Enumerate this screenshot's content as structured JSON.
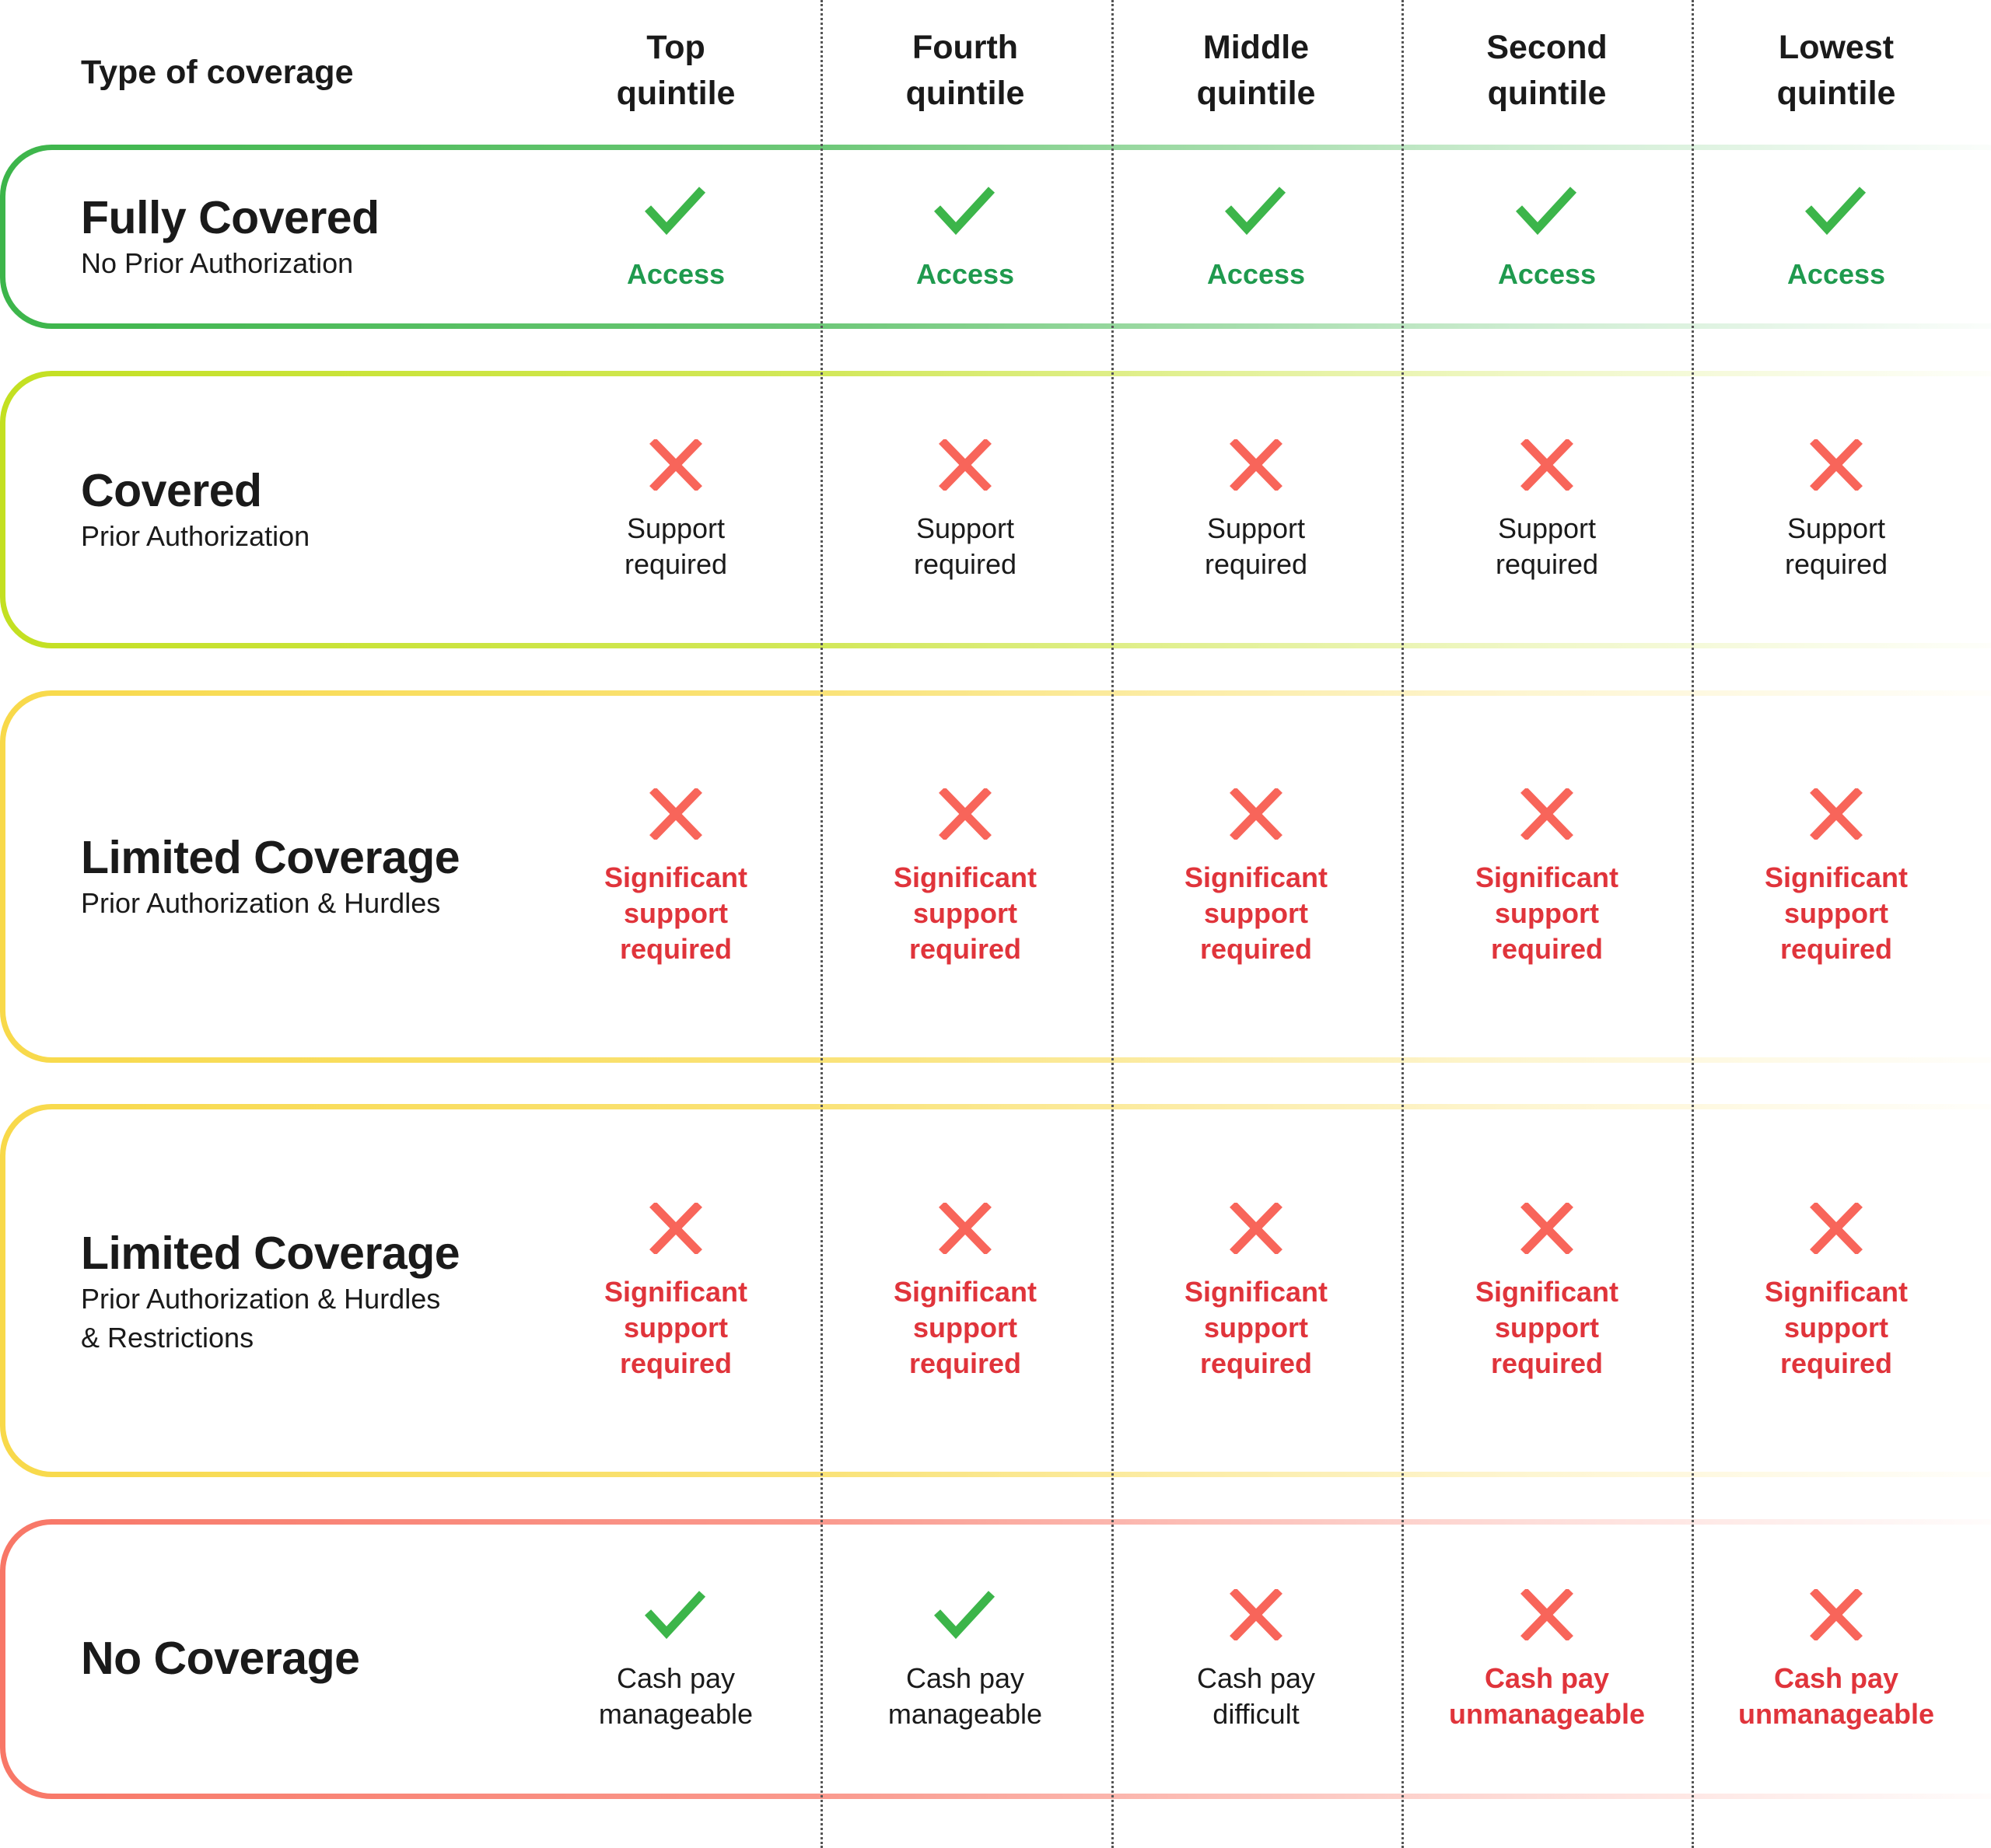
{
  "header": {
    "first": "Type of coverage",
    "columns": [
      [
        "Top",
        "quintile"
      ],
      [
        "Fourth",
        "quintile"
      ],
      [
        "Middle",
        "quintile"
      ],
      [
        "Second",
        "quintile"
      ],
      [
        "Lowest",
        "quintile"
      ]
    ]
  },
  "colors": {
    "check": "#3cb54a",
    "cross": "#f8655a",
    "access_text": "#1f9a4e",
    "warning_text": "#e0343b"
  },
  "rows": [
    {
      "title": "Fully Covered",
      "subtitle": [
        "No Prior Authorization"
      ],
      "border_color": "#3cb54a",
      "cells": [
        {
          "icon": "check-icon",
          "text": [
            "Access"
          ],
          "style": "green"
        },
        {
          "icon": "check-icon",
          "text": [
            "Access"
          ],
          "style": "green"
        },
        {
          "icon": "check-icon",
          "text": [
            "Access"
          ],
          "style": "green"
        },
        {
          "icon": "check-icon",
          "text": [
            "Access"
          ],
          "style": "green"
        },
        {
          "icon": "check-icon",
          "text": [
            "Access"
          ],
          "style": "green"
        }
      ]
    },
    {
      "title": "Covered",
      "subtitle": [
        "Prior Authorization"
      ],
      "border_color": "#c3e021",
      "cells": [
        {
          "icon": "cross-icon",
          "text": [
            "Support",
            "required"
          ],
          "style": "plain"
        },
        {
          "icon": "cross-icon",
          "text": [
            "Support",
            "required"
          ],
          "style": "plain"
        },
        {
          "icon": "cross-icon",
          "text": [
            "Support",
            "required"
          ],
          "style": "plain"
        },
        {
          "icon": "cross-icon",
          "text": [
            "Support",
            "required"
          ],
          "style": "plain"
        },
        {
          "icon": "cross-icon",
          "text": [
            "Support",
            "required"
          ],
          "style": "plain"
        }
      ]
    },
    {
      "title": "Limited Coverage",
      "subtitle": [
        "Prior Authorization & Hurdles"
      ],
      "border_color": "#f8d94a",
      "cells": [
        {
          "icon": "cross-icon",
          "text": [
            "Significant",
            "support",
            "required"
          ],
          "style": "red"
        },
        {
          "icon": "cross-icon",
          "text": [
            "Significant",
            "support",
            "required"
          ],
          "style": "red"
        },
        {
          "icon": "cross-icon",
          "text": [
            "Significant",
            "support",
            "required"
          ],
          "style": "red"
        },
        {
          "icon": "cross-icon",
          "text": [
            "Significant",
            "support",
            "required"
          ],
          "style": "red"
        },
        {
          "icon": "cross-icon",
          "text": [
            "Significant",
            "support",
            "required"
          ],
          "style": "red"
        }
      ]
    },
    {
      "title": "Limited Coverage",
      "subtitle": [
        "Prior Authorization & Hurdles",
        "& Restrictions"
      ],
      "border_color": "#f8d94a",
      "cells": [
        {
          "icon": "cross-icon",
          "text": [
            "Significant",
            "support",
            "required"
          ],
          "style": "red"
        },
        {
          "icon": "cross-icon",
          "text": [
            "Significant",
            "support",
            "required"
          ],
          "style": "red"
        },
        {
          "icon": "cross-icon",
          "text": [
            "Significant",
            "support",
            "required"
          ],
          "style": "red"
        },
        {
          "icon": "cross-icon",
          "text": [
            "Significant",
            "support",
            "required"
          ],
          "style": "red"
        },
        {
          "icon": "cross-icon",
          "text": [
            "Significant",
            "support",
            "required"
          ],
          "style": "red"
        }
      ]
    },
    {
      "title": "No Coverage",
      "subtitle": [],
      "border_color": "#f87767",
      "cells": [
        {
          "icon": "check-icon",
          "text": [
            "Cash pay",
            "manageable"
          ],
          "style": "plain"
        },
        {
          "icon": "check-icon",
          "text": [
            "Cash pay",
            "manageable"
          ],
          "style": "plain"
        },
        {
          "icon": "cross-icon",
          "text": [
            "Cash pay",
            "difficult"
          ],
          "style": "plain"
        },
        {
          "icon": "cross-icon",
          "text": [
            "Cash pay",
            "unmanageable"
          ],
          "style": "red"
        },
        {
          "icon": "cross-icon",
          "text": [
            "Cash pay",
            "unmanageable"
          ],
          "style": "red"
        }
      ]
    }
  ]
}
